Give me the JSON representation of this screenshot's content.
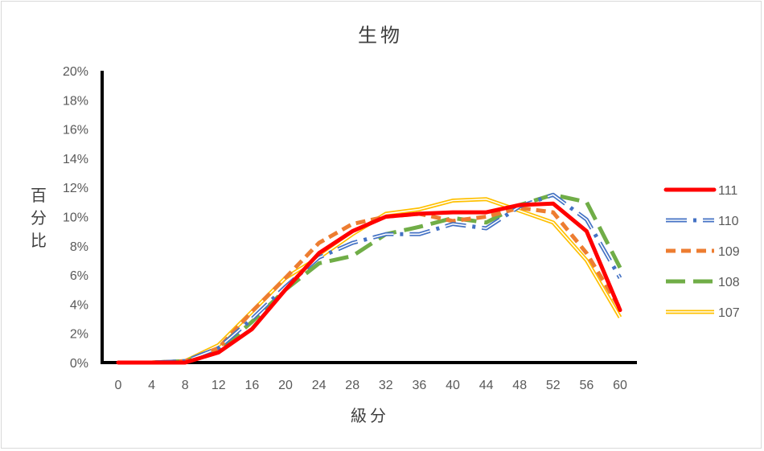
{
  "chart_data": {
    "type": "line",
    "title": "生物",
    "xlabel": "級分",
    "ylabel": "百分比",
    "x": [
      0,
      4,
      8,
      12,
      16,
      20,
      24,
      28,
      32,
      36,
      40,
      44,
      48,
      52,
      56,
      60
    ],
    "xticks": [
      "0",
      "4",
      "8",
      "12",
      "16",
      "20",
      "24",
      "28",
      "32",
      "36",
      "40",
      "44",
      "48",
      "52",
      "56",
      "60"
    ],
    "ylim": [
      0,
      20
    ],
    "yticks": [
      "0%",
      "2%",
      "4%",
      "6%",
      "8%",
      "10%",
      "12%",
      "14%",
      "16%",
      "18%",
      "20%"
    ],
    "grid": false,
    "legend_position": "right",
    "series": [
      {
        "name": "111",
        "color": "#ff0000",
        "style": "solid-thick",
        "values": [
          0.0,
          0.0,
          0.0,
          0.7,
          2.3,
          5.0,
          7.5,
          9.0,
          10.0,
          10.2,
          10.3,
          10.3,
          10.8,
          10.9,
          9.0,
          3.6
        ]
      },
      {
        "name": "110",
        "color": "#4472c4",
        "style": "double-longdash-dot",
        "values": [
          0.0,
          0.0,
          0.1,
          1.0,
          3.0,
          5.2,
          7.2,
          8.2,
          8.8,
          8.8,
          9.5,
          9.2,
          10.7,
          11.5,
          9.8,
          5.8
        ]
      },
      {
        "name": "109",
        "color": "#ed7d31",
        "style": "dashed",
        "values": [
          0.0,
          0.0,
          0.1,
          1.0,
          3.5,
          5.8,
          8.2,
          9.5,
          10.0,
          10.2,
          9.7,
          10.0,
          10.6,
          10.3,
          7.5,
          3.7
        ]
      },
      {
        "name": "108",
        "color": "#70ad47",
        "style": "longdash",
        "values": [
          0.0,
          0.0,
          0.1,
          0.8,
          2.8,
          5.0,
          6.8,
          7.3,
          8.8,
          9.3,
          9.9,
          9.6,
          10.8,
          11.5,
          11.0,
          6.5
        ]
      },
      {
        "name": "107",
        "color": "#ffc000",
        "style": "double",
        "values": [
          0.0,
          0.0,
          0.1,
          1.2,
          3.5,
          5.8,
          7.2,
          8.8,
          10.2,
          10.5,
          11.1,
          11.2,
          10.4,
          9.6,
          7.0,
          3.1
        ]
      }
    ]
  }
}
